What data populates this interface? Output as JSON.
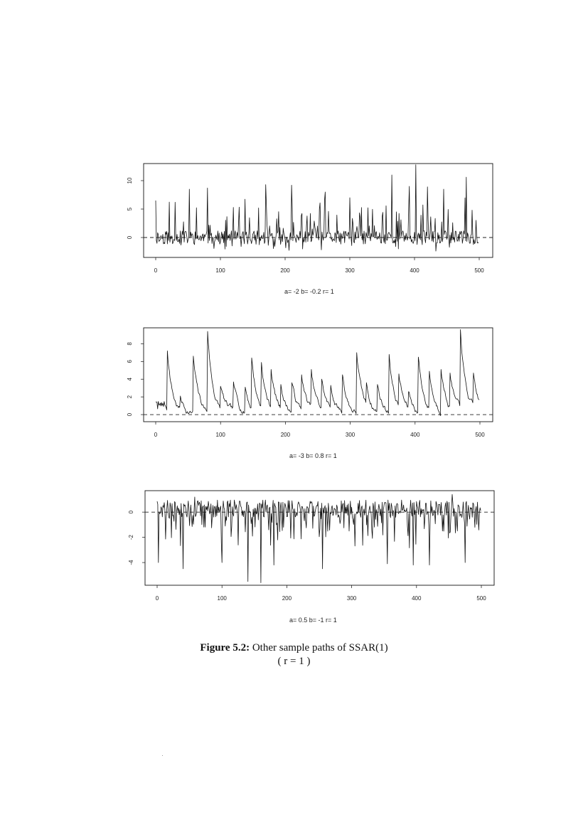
{
  "chart_data": [
    {
      "type": "line",
      "xlabel": "a= -2 b= -0.2 r= 1",
      "xlim": [
        0,
        500
      ],
      "ylim": [
        -3.5,
        13
      ],
      "xticks": [
        0,
        100,
        200,
        300,
        400,
        500
      ],
      "yticks": [
        0,
        5,
        10
      ],
      "hline": 0,
      "n": 500,
      "seed": 11,
      "style": "spiky-up",
      "x": [
        0,
        30,
        52,
        80,
        120,
        170,
        210,
        262,
        300,
        365,
        392,
        402,
        420,
        445,
        480,
        500
      ],
      "y": [
        6.5,
        6.2,
        8.5,
        8.7,
        5.3,
        9.3,
        9.2,
        8.0,
        7.0,
        11.0,
        9.0,
        12.8,
        8.9,
        8.5,
        10.6,
        4.5
      ],
      "ymin": -3.5
    },
    {
      "type": "line",
      "xlabel": "a= -3 b= 0.8 r= 1",
      "xlim": [
        0,
        500
      ],
      "ylim": [
        -0.8,
        9.8
      ],
      "xticks": [
        0,
        100,
        200,
        300,
        400,
        500
      ],
      "yticks": [
        0,
        2,
        4,
        6,
        8
      ],
      "hline": 0,
      "peaks": [
        [
          18,
          7.2
        ],
        [
          38,
          2.1
        ],
        [
          58,
          6.6
        ],
        [
          80,
          9.4
        ],
        [
          100,
          3.2
        ],
        [
          120,
          3.7
        ],
        [
          138,
          3.1
        ],
        [
          148,
          6.4
        ],
        [
          163,
          5.9
        ],
        [
          178,
          5.1
        ],
        [
          193,
          3.4
        ],
        [
          210,
          3.6
        ],
        [
          225,
          4.5
        ],
        [
          240,
          5.1
        ],
        [
          256,
          4.0
        ],
        [
          270,
          3.3
        ],
        [
          288,
          4.5
        ],
        [
          310,
          7.0
        ],
        [
          325,
          3.6
        ],
        [
          342,
          3.4
        ],
        [
          360,
          6.8
        ],
        [
          375,
          4.6
        ],
        [
          390,
          2.6
        ],
        [
          405,
          6.5
        ],
        [
          422,
          4.9
        ],
        [
          440,
          5.1
        ],
        [
          454,
          4.7
        ],
        [
          470,
          9.6
        ],
        [
          490,
          4.7
        ]
      ],
      "ymin": -0.8
    },
    {
      "type": "line",
      "xlabel": "a= 0.5 b= -1 r= 1",
      "xlim": [
        0,
        500
      ],
      "ylim": [
        -5.8,
        1.7
      ],
      "xticks": [
        0,
        100,
        200,
        300,
        400,
        500
      ],
      "yticks": [
        0,
        -2,
        -4
      ],
      "hline": 0,
      "n": 500,
      "seed": 29,
      "style": "spiky-down",
      "x": [
        2,
        40,
        58,
        100,
        140,
        160,
        180,
        255,
        355,
        395,
        420,
        455,
        475
      ],
      "y": [
        -4.0,
        -4.5,
        1.2,
        -4.0,
        -5.5,
        -5.6,
        -4.2,
        -4.5,
        -4.1,
        -4.2,
        -4.2,
        1.4,
        -4.0
      ],
      "ymin": -5.8
    }
  ],
  "caption": {
    "label": "Figure 5.2:",
    "text": "Other sample paths of SSAR(1)",
    "line2": "( r = 1 )"
  }
}
